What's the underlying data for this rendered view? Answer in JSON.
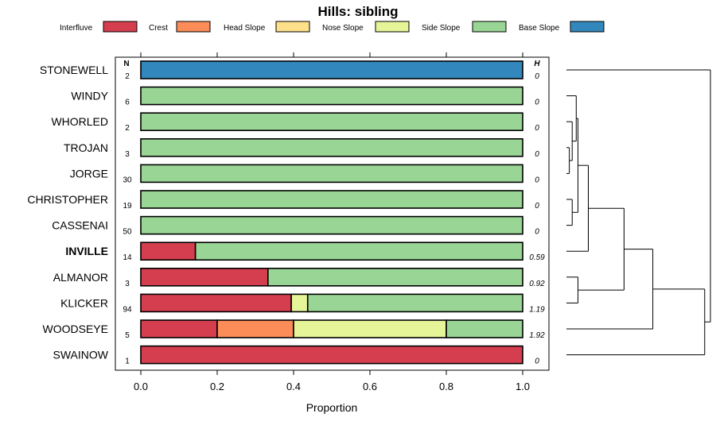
{
  "chart_data": {
    "type": "bar",
    "stacked": true,
    "orientation": "horizontal",
    "title": "Hills: sibling",
    "xlabel": "Proportion",
    "xlim": [
      0,
      1
    ],
    "xticks": [
      "0.0",
      "0.2",
      "0.4",
      "0.6",
      "0.8",
      "1.0"
    ],
    "n_header": "N",
    "h_header": "H",
    "legend_position": "top",
    "legend": [
      {
        "name": "Interfluve",
        "color": "#d53e4f"
      },
      {
        "name": "Crest",
        "color": "#fc8d59"
      },
      {
        "name": "Head Slope",
        "color": "#fee08b"
      },
      {
        "name": "Nose Slope",
        "color": "#e6f598"
      },
      {
        "name": "Side Slope",
        "color": "#99d594"
      },
      {
        "name": "Base Slope",
        "color": "#3288bd"
      }
    ],
    "rows": [
      {
        "label": "STONEWELL",
        "n": "2",
        "h": "0",
        "bold": false,
        "values": [
          0,
          0,
          0,
          0,
          0,
          1
        ]
      },
      {
        "label": "WINDY",
        "n": "6",
        "h": "0",
        "bold": false,
        "values": [
          0,
          0,
          0,
          0,
          1,
          0
        ]
      },
      {
        "label": "WHORLED",
        "n": "2",
        "h": "0",
        "bold": false,
        "values": [
          0,
          0,
          0,
          0,
          1,
          0
        ]
      },
      {
        "label": "TROJAN",
        "n": "3",
        "h": "0",
        "bold": false,
        "values": [
          0,
          0,
          0,
          0,
          1,
          0
        ]
      },
      {
        "label": "JORGE",
        "n": "30",
        "h": "0",
        "bold": false,
        "values": [
          0,
          0,
          0,
          0,
          1,
          0
        ]
      },
      {
        "label": "CHRISTOPHER",
        "n": "19",
        "h": "0",
        "bold": false,
        "values": [
          0,
          0,
          0,
          0,
          1,
          0
        ]
      },
      {
        "label": "CASSENAI",
        "n": "50",
        "h": "0",
        "bold": false,
        "values": [
          0,
          0,
          0,
          0,
          1,
          0
        ]
      },
      {
        "label": "INVILLE",
        "n": "14",
        "h": "0.59",
        "bold": true,
        "values": [
          0.143,
          0,
          0,
          0,
          0.857,
          0
        ]
      },
      {
        "label": "ALMANOR",
        "n": "3",
        "h": "0.92",
        "bold": false,
        "values": [
          0.333,
          0,
          0,
          0,
          0.667,
          0
        ]
      },
      {
        "label": "KLICKER",
        "n": "94",
        "h": "1.19",
        "bold": false,
        "values": [
          0.394,
          0,
          0,
          0.043,
          0.563,
          0
        ]
      },
      {
        "label": "WOODSEYE",
        "n": "5",
        "h": "1.92",
        "bold": false,
        "values": [
          0.2,
          0.2,
          0,
          0.4,
          0.2,
          0
        ]
      },
      {
        "label": "SWAINOW",
        "n": "1",
        "h": "0",
        "bold": false,
        "values": [
          1,
          0,
          0,
          0,
          0,
          0
        ]
      }
    ],
    "dendrogram": {
      "description": "hierarchical clustering of rows",
      "merges": [
        {
          "id": "a",
          "left": "TROJAN",
          "right": "JORGE",
          "height": 0.05
        },
        {
          "id": "b",
          "left": "WHORLED",
          "right": "a",
          "height": 0.1
        },
        {
          "id": "c",
          "left": "WINDY",
          "right": "b",
          "height": 0.17
        },
        {
          "id": "d",
          "left": "CHRISTOPHER",
          "right": "CASSENAI",
          "height": 0.1
        },
        {
          "id": "e",
          "left": "c",
          "right": "d",
          "height": 0.2
        },
        {
          "id": "f",
          "left": "e",
          "right": "INVILLE",
          "height": 0.38
        },
        {
          "id": "g",
          "left": "ALMANOR",
          "right": "KLICKER",
          "height": 0.2
        },
        {
          "id": "h",
          "left": "f",
          "right": "g",
          "height": 1.0
        },
        {
          "id": "i",
          "left": "h",
          "right": "WOODSEYE",
          "height": 1.5
        },
        {
          "id": "j",
          "left": "i",
          "right": "SWAINOW",
          "height": 2.4
        },
        {
          "id": "k",
          "left": "STONEWELL",
          "right": "j",
          "height": 2.5
        }
      ],
      "max_height": 2.5
    }
  }
}
